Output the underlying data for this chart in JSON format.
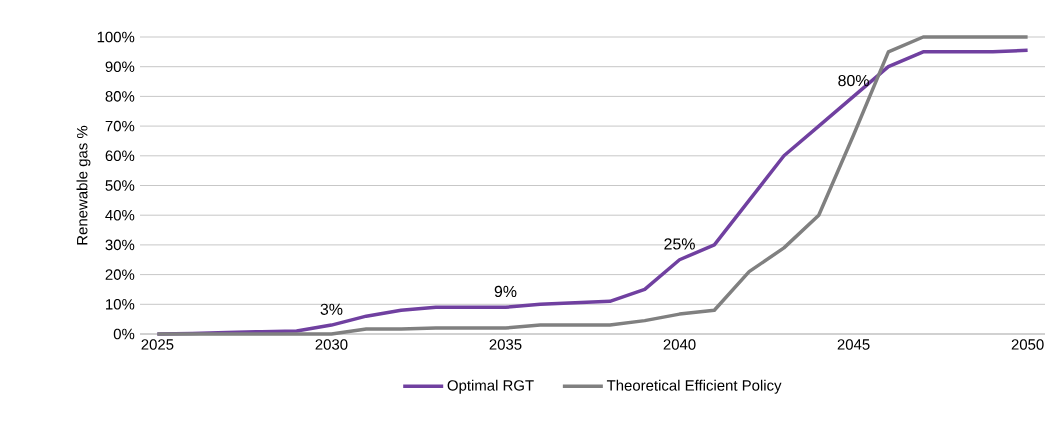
{
  "chart_data": {
    "type": "line",
    "ylabel": "Renewable gas %",
    "x": [
      2025,
      2026,
      2027,
      2028,
      2029,
      2030,
      2031,
      2032,
      2033,
      2034,
      2035,
      2036,
      2037,
      2038,
      2039,
      2040,
      2041,
      2042,
      2043,
      2044,
      2045,
      2046,
      2047,
      2048,
      2049,
      2050
    ],
    "series": [
      {
        "name": "Optimal RGT",
        "color": "#7040a0",
        "values": [
          0,
          0.2,
          0.5,
          0.8,
          1,
          3,
          6,
          8,
          9,
          9,
          9,
          10,
          10.5,
          11,
          15,
          25,
          30,
          45,
          60,
          70,
          80,
          90,
          95,
          95,
          95,
          95.5
        ],
        "value_labels": [
          null,
          null,
          null,
          null,
          null,
          "3%",
          null,
          null,
          null,
          null,
          "9%",
          null,
          null,
          null,
          null,
          "25%",
          null,
          null,
          null,
          null,
          "80%",
          null,
          null,
          null,
          null,
          null
        ]
      },
      {
        "name": "Theoretical Efficient Policy",
        "color": "#808080",
        "values": [
          0,
          0,
          0,
          0,
          0,
          0,
          1.7,
          1.7,
          2,
          2,
          2,
          3,
          3,
          3,
          4.5,
          6.7,
          8,
          21,
          29,
          40,
          67,
          95,
          100,
          100,
          100,
          100
        ]
      }
    ],
    "xlim": [
      2024.5,
      2050.5
    ],
    "xticks": [
      2025,
      2030,
      2035,
      2040,
      2045,
      2050
    ],
    "ylim": [
      0,
      100
    ],
    "yticks": [
      {
        "value": 0,
        "label": "0%"
      },
      {
        "value": 10,
        "label": "10%"
      },
      {
        "value": 20,
        "label": "20%"
      },
      {
        "value": 30,
        "label": "30%"
      },
      {
        "value": 40,
        "label": "40%"
      },
      {
        "value": 50,
        "label": "50%"
      },
      {
        "value": 60,
        "label": "60%"
      },
      {
        "value": 70,
        "label": "70%"
      },
      {
        "value": 80,
        "label": "80%"
      },
      {
        "value": 90,
        "label": "90%"
      },
      {
        "value": 100,
        "label": "100%"
      }
    ],
    "grid": "y",
    "legend": "bottom",
    "marker": "none",
    "line_style": "solid"
  }
}
